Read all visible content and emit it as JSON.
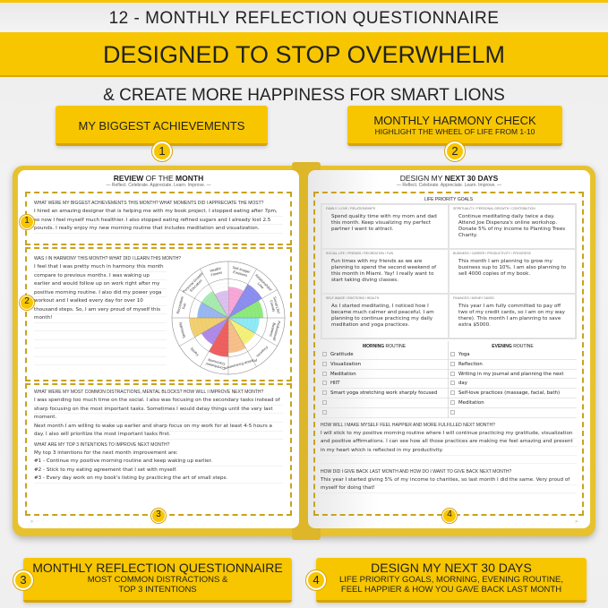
{
  "header": {
    "line1": "12 - MONTHLY REFLECTION QUESTIONNAIRE",
    "line2": "DESIGNED TO STOP OVERWHELM",
    "line3": "& CREATE MORE HAPPINESS FOR SMART LIONS"
  },
  "callouts": [
    {
      "num": "1",
      "title": "MY BIGGEST ACHIEVEMENTS"
    },
    {
      "num": "2",
      "title": "MONTHLY HARMONY CHECK",
      "sub": "HIGHLIGHT THE WHEEL OF LIFE FROM 1-10"
    },
    {
      "num": "3",
      "title": "MONTHLY REFLECTION QUESTIONNAIRE",
      "sub": "MOST COMMON DISTRACTIONS &",
      "sub2": "TOP 3 INTENTIONS"
    },
    {
      "num": "4",
      "title": "DESIGN MY NEXT 30 DAYS",
      "sub": "LIFE PRIORITY GOALS, MORNING, EVENING ROUTINE,",
      "sub2": "FEEL HAPPIER & HOW YOU GAVE BACK LAST MONTH"
    }
  ],
  "left": {
    "title_a": "REVIEW",
    "title_b": " OF THE ",
    "title_c": "MONTH",
    "subtitle": "— Reflect. Celebrate. Appreciate. Learn. Improve. —",
    "q1": "What were my biggest achievements this month? What moments did I appreciate the most?",
    "a1": "I hired an amazing designer that is helping me with my book project. I stopped eating after 7pm, so now I feel myself much healthier. I also stopped eating refined sugars and I already lost 2.5 pounds. I really enjoy my new morning routine that includes meditation and visualization.",
    "q2": "Was I in harmony this month? What did I learn this month?",
    "a2": "I feel that I was pretty much in harmony this month compare to previous months. I was waking up earlier and would follow up on work right after my positive morning routine. I also did my power yoga workout and I walked every day for over 10 thousand steps. So, I am very proud of myself this month!",
    "q3": "What were my most common distractions, mental blocks? How will I improve next month?",
    "a3a": "I was spending too much time on the social. I also was focusing on the secondary tasks instead of sharp focusing on the most important tasks. Sometimes I would delay things until the very last moment.",
    "a3b": "Next month I am willing to wake up earlier and sharp focus on my work for at least 4-5 hours a day. I also will prioritize the most important tasks first.",
    "q4": "What are my top 3 intentions to improve next month?",
    "a4": [
      "My top 3 intentions for the next month improvement are:",
      "#1 - Continue my positive morning routine and keep waking up earlier.",
      "#2 - Stick to my eating agreement that I set with myself.",
      "#3 - Every day work on my book's listing by practicing the art of small steps."
    ],
    "page_marker": ">"
  },
  "wheel": {
    "labels": [
      "Self-Image/ Emotions",
      "Relationships/ Love",
      "Social Life/ Friends",
      "Professional/ Business",
      "Finances",
      "Physical Environment",
      "Contribution/ Community",
      "Family",
      "Spirituality",
      "Recreation/ Fun",
      "Personal Growth/ Education",
      "Health/ Fitness"
    ],
    "values": [
      8,
      10,
      9,
      8,
      8,
      9,
      10,
      8,
      10,
      8,
      8,
      7
    ],
    "max": 10,
    "colors": [
      "#f7a8d8",
      "#8c8ef0",
      "#8eea7c",
      "#8eeaf5",
      "#f5f07a",
      "#f7c08a",
      "#f06060",
      "#b08ae8",
      "#f2d070",
      "#9ab8f0",
      "#a8eab0",
      "#dcc0f0"
    ]
  },
  "right": {
    "title_a": "DESIGN MY ",
    "title_b": "NEXT 30 DAYS",
    "subtitle": "— Reflect. Celebrate. Appreciate. Learn. Improve. —",
    "goals_title": "LIFE PRIORITY GOALS",
    "goals": [
      {
        "head": "Family / Love / Relationships",
        "text": "Spend quality time with my mom and dad this month. Keep visualizing my perfect partner I want to attract."
      },
      {
        "head": "Spirituality / Personal Growth / Contribution",
        "text": "Continue meditating daily twice a day. Attend Joe Dispenza's online workshop. Donate 5% of my income to Planting Trees Charity."
      },
      {
        "head": "Social Life / Friends / Recreation / Fun",
        "text": "Fun times with my friends as we are planning to spend the second weekend of this month in Miami. Yay! I really want to start taking diving classes."
      },
      {
        "head": "Business / Career / Productivity / Progress",
        "text": "This month I am planning to grow my business sup to 10%. I am also planning to sell 4000 copies of my book."
      },
      {
        "head": "Self-Image / Emotions / Health",
        "text": "As I started meditating, I noticed how I became much calmer and peaceful. I am planning to continue practicing my daily meditation and yoga practices."
      },
      {
        "head": "Finances / Money Saved",
        "text": "This year I am fully committed to pay off two of my credit cards, so I am on my way there). This month I am planning to save extra $5000."
      }
    ],
    "morning_a": "MORNING",
    "morning_b": " ROUTINE",
    "evening_a": "EVENING",
    "evening_b": " ROUTINE",
    "morning": [
      "Gratitude",
      "Visualization",
      "Meditation",
      "HIIT",
      "Smart yoga stretching work sharply focused",
      "",
      ""
    ],
    "evening": [
      "Yoga",
      "Reflection",
      "Writing in my journal and planning the next",
      "day",
      "Self-love practices (massage, facial, bath)",
      "Meditation",
      ""
    ],
    "q5": "How will I make myself feel happier and more fulfilled next month?",
    "a5": "I will stick to my positive morning routine where I will continue practicing my gratitude, visualization and positive affirmations. I can see how all those practices are making me feel amazing and present in my heart which is reflected in my productivity.",
    "q6": "How did I give back last month and how do I want to give back next month?",
    "a6": "This year I started giving 5% of my income to charities, so last month I did the same. Very proud of myself for doing that!",
    "page_marker": ">"
  },
  "colors": {
    "accent": "#f7c600",
    "book_cover": "#e8c22e",
    "dashes": "#c9a21e"
  }
}
